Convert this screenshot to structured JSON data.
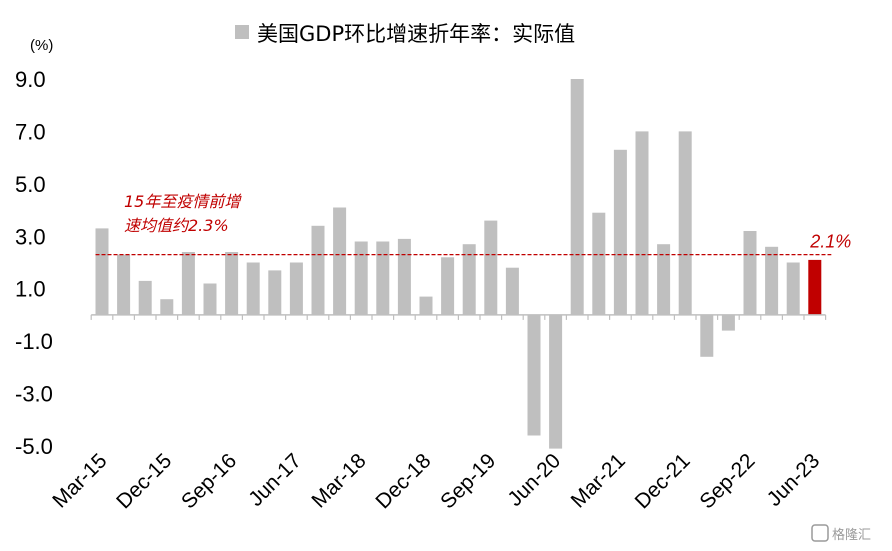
{
  "chart_data": {
    "type": "bar",
    "title": "美国GDP环比增速折年率：实际值",
    "unit_label": "(%)",
    "series": [
      {
        "name": "美国GDP环比增速折年率：实际值",
        "color": "#bfbfbf",
        "highlight_color": "#c00000",
        "x": [
          "Mar-15",
          "Jun-15",
          "Sep-15",
          "Dec-15",
          "Mar-16",
          "Jun-16",
          "Sep-16",
          "Dec-16",
          "Mar-17",
          "Jun-17",
          "Sep-17",
          "Dec-17",
          "Mar-18",
          "Jun-18",
          "Sep-18",
          "Dec-18",
          "Mar-19",
          "Jun-19",
          "Sep-19",
          "Dec-19",
          "Mar-20",
          "Jun-20",
          "Sep-20",
          "Dec-20",
          "Mar-21",
          "Jun-21",
          "Sep-21",
          "Dec-21",
          "Mar-22",
          "Jun-22",
          "Sep-22",
          "Dec-22",
          "Mar-23",
          "Jun-23"
        ],
        "values": [
          3.3,
          2.3,
          1.3,
          0.6,
          2.4,
          1.2,
          2.4,
          2.0,
          1.7,
          2.0,
          3.4,
          4.1,
          2.8,
          2.8,
          2.9,
          0.7,
          2.2,
          2.7,
          3.6,
          1.8,
          -4.6,
          -5.1,
          9.0,
          3.9,
          6.3,
          7.0,
          2.7,
          7.0,
          -1.6,
          -0.6,
          3.2,
          2.6,
          2.0,
          2.1
        ]
      }
    ],
    "x_tick_labels": [
      "Mar-15",
      "Dec-15",
      "Sep-16",
      "Jun-17",
      "Mar-18",
      "Dec-18",
      "Sep-19",
      "Jun-20",
      "Mar-21",
      "Dec-21",
      "Sep-22",
      "Jun-23"
    ],
    "y_ticks": [
      {
        "value": 9,
        "label": "9.0"
      },
      {
        "value": 7,
        "label": "7.0"
      },
      {
        "value": 5,
        "label": "5.0"
      },
      {
        "value": 3,
        "label": "3.0"
      },
      {
        "value": 1,
        "label": "1.0"
      },
      {
        "value": -1,
        "label": "-1.0"
      },
      {
        "value": -3,
        "label": "-3.0"
      },
      {
        "value": -5,
        "label": "-5.0"
      }
    ],
    "ylim": [
      -5.5,
      9.6
    ],
    "reference_line": {
      "value": 2.3,
      "color": "#c00000",
      "style": "dashed"
    },
    "annotation": {
      "line1": "15年至疫情前增",
      "line2": "速均值约2.3%"
    },
    "last_label": "2.1%",
    "watermark": "格隆汇",
    "legend_position": "top-center",
    "grid": false
  }
}
